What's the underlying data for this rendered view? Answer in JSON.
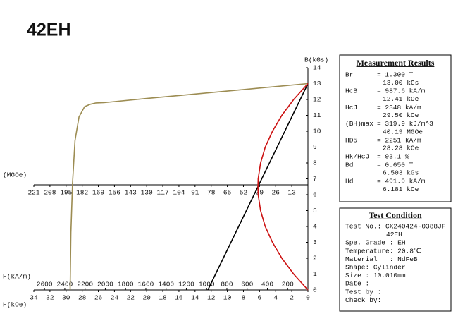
{
  "chart_data": {
    "type": "line",
    "title": "42EH",
    "ylabel": "B(kGs)",
    "ylim": [
      0,
      14
    ],
    "yticks": [
      0,
      1,
      2,
      3,
      4,
      5,
      6,
      7,
      8,
      9,
      10,
      11,
      12,
      13,
      14
    ],
    "xlabel": "H(kOe)",
    "xlim": [
      34,
      0
    ],
    "xticks": [
      34,
      32,
      30,
      28,
      26,
      24,
      22,
      20,
      18,
      16,
      14,
      12,
      10,
      8,
      6,
      4,
      2,
      0
    ],
    "x2label": "H(kA/m)",
    "x2lim": [
      2705.6,
      0
    ],
    "x2ticks": [
      2600,
      2400,
      2200,
      2000,
      1800,
      1600,
      1400,
      1200,
      1000,
      800,
      600,
      400,
      200
    ],
    "x3label": "(MGOe)",
    "x3lim": [
      221,
      0
    ],
    "x3ticks": [
      221,
      208,
      195,
      182,
      169,
      156,
      143,
      130,
      117,
      104,
      91,
      78,
      65,
      52,
      39,
      26,
      13
    ],
    "series": [
      {
        "color": "#9c8c52",
        "axis": "x",
        "x": [
          0,
          10,
          20,
          25.3,
          26.3,
          27.0,
          27.7,
          28.4,
          28.9,
          29.2,
          29.4,
          29.5
        ],
        "values": [
          13.0,
          12.53,
          12.06,
          11.8,
          11.78,
          11.7,
          11.55,
          10.9,
          9.4,
          6.7,
          3.6,
          0
        ]
      },
      {
        "color": "#000000",
        "axis": "x",
        "x": [
          0,
          12.41
        ],
        "values": [
          13.0,
          0
        ]
      },
      {
        "color": "#cc1111",
        "axis": "x3",
        "x": [
          0,
          11.45,
          21.0,
          28.6,
          34.4,
          38.2,
          40.1,
          40.3,
          40.1,
          38.2,
          34.4,
          28.6,
          21.0,
          11.45,
          0
        ],
        "values": [
          13,
          12,
          11,
          10,
          9,
          8,
          7,
          6.5,
          6,
          5,
          4,
          3,
          2,
          1,
          0
        ]
      }
    ]
  },
  "measurement": {
    "title": "Measurement Results",
    "rows": [
      {
        "label": "Br",
        "lines": [
          "= 1.300 T",
          "13.00 kGs"
        ]
      },
      {
        "label": "HcB",
        "lines": [
          "= 987.6 kA/m",
          "12.41 kOe"
        ]
      },
      {
        "label": "HcJ",
        "lines": [
          "= 2348 kA/m",
          "29.50 kOe"
        ]
      },
      {
        "label": "(BH)max",
        "lines": [
          "= 319.9 kJ/m^3",
          "40.19 MGOe"
        ]
      },
      {
        "label": "HD5",
        "lines": [
          "= 2251 kA/m",
          "28.28 kOe"
        ]
      },
      {
        "label": "Hk/HcJ",
        "lines": [
          "= 93.1 %"
        ]
      },
      {
        "label": "Bd",
        "lines": [
          "= 0.650 T",
          "6.503 kGs"
        ]
      },
      {
        "label": "Hd",
        "lines": [
          "= 491.9 kA/m",
          "6.181 kOe"
        ]
      }
    ]
  },
  "test": {
    "title": "Test Condition",
    "lines": [
      "Test No.: CX240424-0388JF",
      "42EH",
      "Spe. Grade : EH",
      "Temperature: 20.8℃",
      "Material   : NdFeB",
      "Shape: Cylinder",
      "Size : 10.010mm",
      "Date :",
      "Test by :",
      "Check by:"
    ]
  }
}
